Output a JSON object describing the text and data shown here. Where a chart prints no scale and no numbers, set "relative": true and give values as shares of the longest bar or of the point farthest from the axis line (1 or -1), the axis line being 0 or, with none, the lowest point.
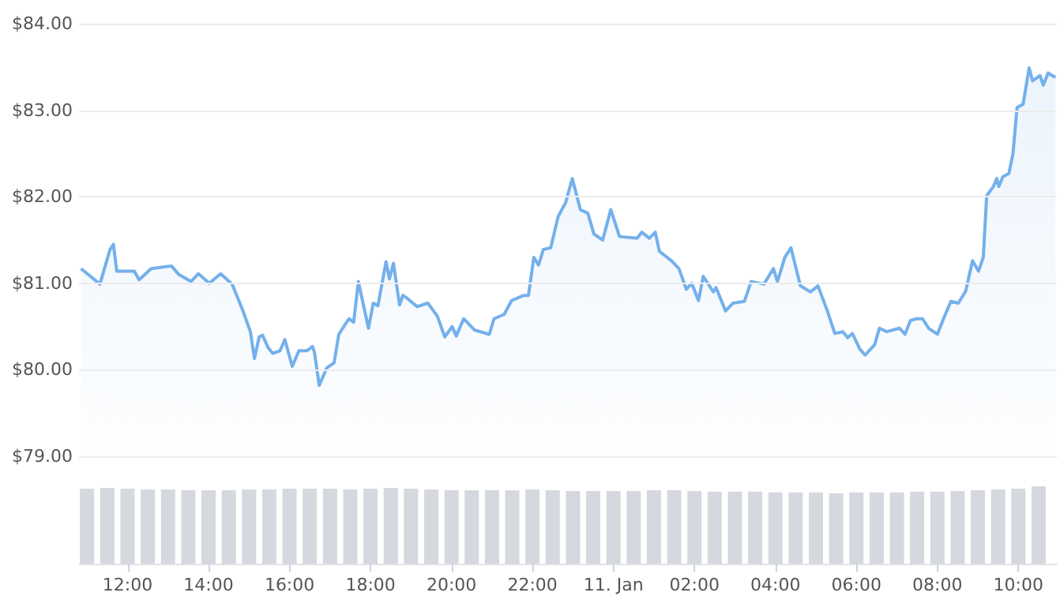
{
  "chart_data": [
    {
      "type": "area",
      "color": "#74b0ec",
      "grid": "y",
      "tick_labels": "y",
      "marker": "none",
      "xlim": [
        "--01-10T10:48",
        "--01-11T10:57"
      ],
      "ylim": [
        79,
        84
      ],
      "yticks": [
        {
          "value": 79,
          "label": "$79.00"
        },
        {
          "value": 80,
          "label": "$80.00"
        },
        {
          "value": 81,
          "label": "$81.00"
        },
        {
          "value": 82,
          "label": "$82.00"
        },
        {
          "value": 83,
          "label": "$83.00"
        },
        {
          "value": 84,
          "label": "$84.00"
        }
      ],
      "x": [
        "--01-10T10:51",
        "--01-10T11:19",
        "--01-10T11:34",
        "--01-10T11:39",
        "--01-10T11:44",
        "--01-10T12:10",
        "--01-10T12:17",
        "--01-10T12:35",
        "--01-10T13:05",
        "--01-10T13:16",
        "--01-10T13:34",
        "--01-10T13:45",
        "--01-10T14:01",
        "--01-10T14:18",
        "--01-10T14:35",
        "--01-10T14:51",
        "--01-10T15:02",
        "--01-10T15:08",
        "--01-10T15:15",
        "--01-10T15:20",
        "--01-10T15:28",
        "--01-10T15:35",
        "--01-10T15:46",
        "--01-10T15:53",
        "--01-10T16:04",
        "--01-10T16:14",
        "--01-10T16:26",
        "--01-10T16:34",
        "--01-10T16:37",
        "--01-10T16:44",
        "--01-10T16:55",
        "--01-10T17:06",
        "--01-10T17:13",
        "--01-10T17:28",
        "--01-10T17:35",
        "--01-10T17:42",
        "--01-10T17:57",
        "--01-10T18:04",
        "--01-10T18:11",
        "--01-10T18:23",
        "--01-10T18:28",
        "--01-10T18:34",
        "--01-10T18:43",
        "--01-10T18:48",
        "--01-10T18:52",
        "--01-10T19:09",
        "--01-10T19:25",
        "--01-10T19:39",
        "--01-10T19:50",
        "--01-10T20:01",
        "--01-10T20:07",
        "--01-10T20:18",
        "--01-10T20:34",
        "--01-10T20:56",
        "--01-10T21:03",
        "--01-10T21:18",
        "--01-10T21:29",
        "--01-10T21:47",
        "--01-10T21:54",
        "--01-10T22:02",
        "--01-10T22:09",
        "--01-10T22:16",
        "--01-10T22:27",
        "--01-10T22:38",
        "--01-10T22:49",
        "--01-10T22:59",
        "--01-10T23:11",
        "--01-10T23:22",
        "--01-10T23:31",
        "--01-10T23:44",
        "--01-10T23:56",
        "--01-11T00:09",
        "--01-11T00:35",
        "--01-11T00:42",
        "--01-11T00:53",
        "--01-11T01:02",
        "--01-11T01:08",
        "--01-11T01:26",
        "--01-11T01:37",
        "--01-11T01:48",
        "--01-11T01:56",
        "--01-11T02:06",
        "--01-11T02:13",
        "--01-11T02:28",
        "--01-11T02:32",
        "--01-11T02:46",
        "--01-11T02:57",
        "--01-11T03:14",
        "--01-11T03:24",
        "--01-11T03:43",
        "--01-11T03:57",
        "--01-11T04:03",
        "--01-11T04:14",
        "--01-11T04:23",
        "--01-11T04:37",
        "--01-11T04:52",
        "--01-11T05:03",
        "--01-11T05:17",
        "--01-11T05:28",
        "--01-11T05:40",
        "--01-11T05:47",
        "--01-11T05:54",
        "--01-11T06:05",
        "--01-11T06:13",
        "--01-11T06:27",
        "--01-11T06:34",
        "--01-11T06:45",
        "--01-11T07:04",
        "--01-11T07:12",
        "--01-11T07:20",
        "--01-11T07:29",
        "--01-11T07:38",
        "--01-11T07:47",
        "--01-11T08:00",
        "--01-11T08:09",
        "--01-11T08:20",
        "--01-11T08:31",
        "--01-11T08:42",
        "--01-11T08:52",
        "--01-11T09:01",
        "--01-11T09:08",
        "--01-11T09:13",
        "--01-11T09:23",
        "--01-11T09:28",
        "--01-11T09:31",
        "--01-11T09:37",
        "--01-11T09:46",
        "--01-11T09:52",
        "--01-11T09:58",
        "--01-11T10:07",
        "--01-11T10:16",
        "--01-11T10:21",
        "--01-11T10:32",
        "--01-11T10:37",
        "--01-11T10:44",
        "--01-11T10:55"
      ],
      "values": [
        81.17,
        80.99,
        81.39,
        81.45,
        81.14,
        81.14,
        81.04,
        81.17,
        81.2,
        81.1,
        81.02,
        81.11,
        81.0,
        81.11,
        80.99,
        80.68,
        80.44,
        80.13,
        80.38,
        80.4,
        80.26,
        80.19,
        80.22,
        80.35,
        80.04,
        80.22,
        80.22,
        80.27,
        80.2,
        79.82,
        80.02,
        80.08,
        80.41,
        80.59,
        80.55,
        81.02,
        80.48,
        80.77,
        80.74,
        81.25,
        81.05,
        81.23,
        80.75,
        80.86,
        80.84,
        80.73,
        80.77,
        80.62,
        80.38,
        80.5,
        80.39,
        80.59,
        80.46,
        80.41,
        80.59,
        80.64,
        80.8,
        80.86,
        80.86,
        81.3,
        81.21,
        81.39,
        81.41,
        81.77,
        81.93,
        82.21,
        81.85,
        81.81,
        81.57,
        81.5,
        81.85,
        81.54,
        81.52,
        81.59,
        81.52,
        81.59,
        81.37,
        81.26,
        81.17,
        80.93,
        81.0,
        80.8,
        81.08,
        80.9,
        80.95,
        80.68,
        80.77,
        80.79,
        81.02,
        80.99,
        81.17,
        81.02,
        81.3,
        81.41,
        80.97,
        80.9,
        80.97,
        80.68,
        80.42,
        80.44,
        80.37,
        80.42,
        80.24,
        80.17,
        80.29,
        80.48,
        80.44,
        80.48,
        80.41,
        80.57,
        80.59,
        80.59,
        80.48,
        80.41,
        80.59,
        80.79,
        80.77,
        80.91,
        81.26,
        81.14,
        81.3,
        82.01,
        82.12,
        82.21,
        82.12,
        82.23,
        82.27,
        82.5,
        83.03,
        83.07,
        83.49,
        83.34,
        83.4,
        83.29,
        83.43,
        83.38
      ]
    },
    {
      "type": "bar",
      "relative": true,
      "color": "#d5d8de",
      "tick_labels": "x",
      "xlim": [
        "--01-10T10:48",
        "--01-11T10:57"
      ],
      "xticks": [
        {
          "value": "--01-10T12:00",
          "label": "12:00"
        },
        {
          "value": "--01-10T14:00",
          "label": "14:00"
        },
        {
          "value": "--01-10T16:00",
          "label": "16:00"
        },
        {
          "value": "--01-10T18:00",
          "label": "18:00"
        },
        {
          "value": "--01-10T20:00",
          "label": "20:00"
        },
        {
          "value": "--01-10T22:00",
          "label": "22:00"
        },
        {
          "value": "--01-11T00:00",
          "label": "11. Jan"
        },
        {
          "value": "--01-11T02:00",
          "label": "02:00"
        },
        {
          "value": "--01-11T04:00",
          "label": "04:00"
        },
        {
          "value": "--01-11T06:00",
          "label": "06:00"
        },
        {
          "value": "--01-11T08:00",
          "label": "08:00"
        },
        {
          "value": "--01-11T10:00",
          "label": "10:00"
        }
      ],
      "x": [
        "--01-10T11:00",
        "--01-10T11:30",
        "--01-10T12:00",
        "--01-10T12:30",
        "--01-10T13:00",
        "--01-10T13:30",
        "--01-10T14:00",
        "--01-10T14:30",
        "--01-10T15:00",
        "--01-10T15:30",
        "--01-10T16:00",
        "--01-10T16:30",
        "--01-10T17:00",
        "--01-10T17:30",
        "--01-10T18:00",
        "--01-10T18:30",
        "--01-10T19:00",
        "--01-10T19:30",
        "--01-10T20:00",
        "--01-10T20:30",
        "--01-10T21:00",
        "--01-10T21:30",
        "--01-10T22:00",
        "--01-10T22:30",
        "--01-10T23:00",
        "--01-10T23:30",
        "--01-11T00:00",
        "--01-11T00:30",
        "--01-11T01:00",
        "--01-11T01:30",
        "--01-11T02:00",
        "--01-11T02:30",
        "--01-11T03:00",
        "--01-11T03:30",
        "--01-11T04:00",
        "--01-11T04:30",
        "--01-11T05:00",
        "--01-11T05:30",
        "--01-11T06:00",
        "--01-11T06:30",
        "--01-11T07:00",
        "--01-11T07:30",
        "--01-11T08:00",
        "--01-11T08:30",
        "--01-11T09:00",
        "--01-11T09:30",
        "--01-11T10:00",
        "--01-11T10:30"
      ],
      "values": [
        0.97,
        0.98,
        0.97,
        0.96,
        0.96,
        0.95,
        0.95,
        0.95,
        0.96,
        0.96,
        0.97,
        0.97,
        0.97,
        0.96,
        0.97,
        0.98,
        0.97,
        0.96,
        0.95,
        0.95,
        0.95,
        0.95,
        0.96,
        0.95,
        0.94,
        0.94,
        0.94,
        0.94,
        0.95,
        0.95,
        0.94,
        0.93,
        0.93,
        0.93,
        0.92,
        0.92,
        0.92,
        0.91,
        0.92,
        0.92,
        0.92,
        0.93,
        0.93,
        0.94,
        0.95,
        0.96,
        0.97,
        1.0
      ]
    }
  ]
}
